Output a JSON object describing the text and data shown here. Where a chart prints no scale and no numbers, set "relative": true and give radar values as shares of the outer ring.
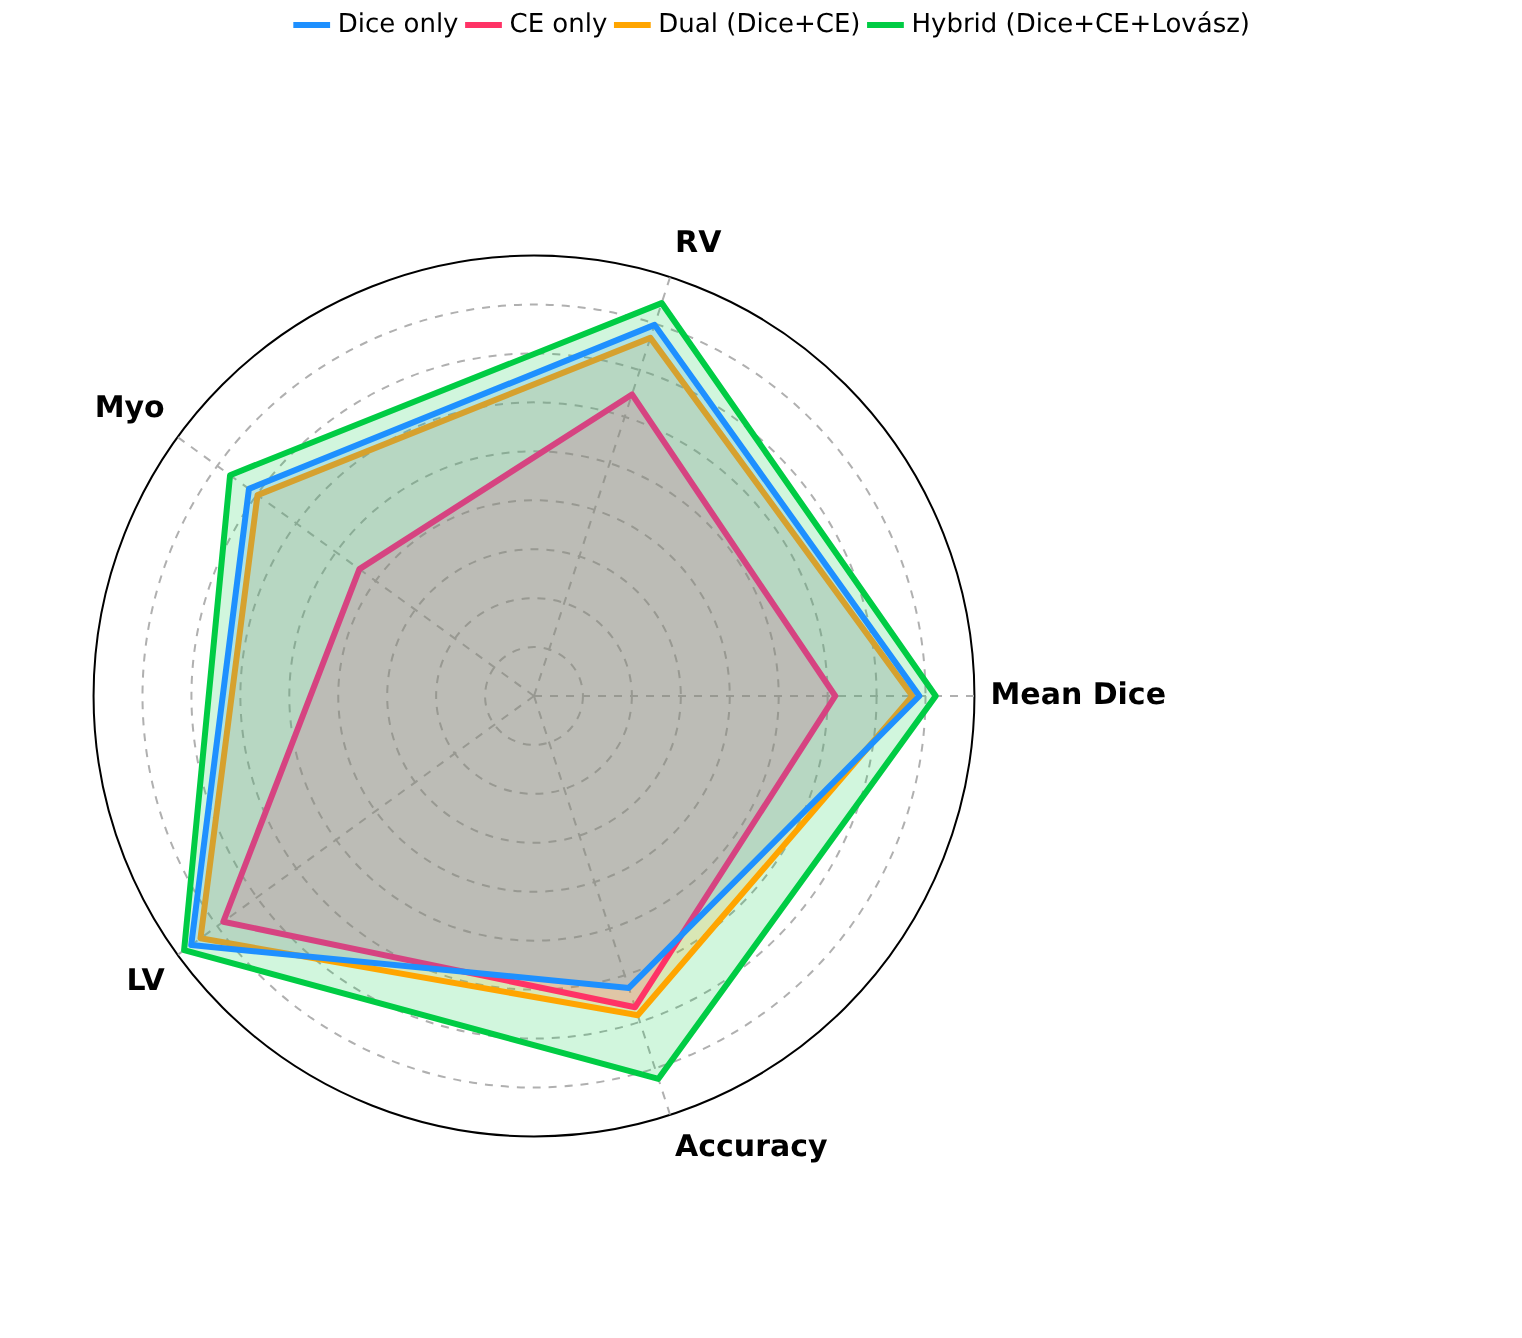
{
  "chart_data": {
    "type": "radar",
    "relative": true,
    "grid": true,
    "legend": "top right",
    "categories": [
      "RV",
      "Mean Dice",
      "Accuracy",
      "LV",
      "Myo"
    ],
    "series": [
      {
        "name": "Dice only",
        "color": "#1e90ff",
        "values": [
          0.886,
          0.875,
          0.697,
          0.962,
          0.8
        ]
      },
      {
        "name": "CE only",
        "color": "#ff3366",
        "values": [
          0.72,
          0.684,
          0.743,
          0.872,
          0.49
        ]
      },
      {
        "name": "Dual (Dice+CE)",
        "color": "#ffa500",
        "values": [
          0.855,
          0.859,
          0.762,
          0.936,
          0.776
        ]
      },
      {
        "name": "Hybrid (Dice+CE+Lovász)",
        "color": "#00cc44",
        "values": [
          0.938,
          0.912,
          0.914,
          0.982,
          0.853
        ]
      }
    ]
  }
}
